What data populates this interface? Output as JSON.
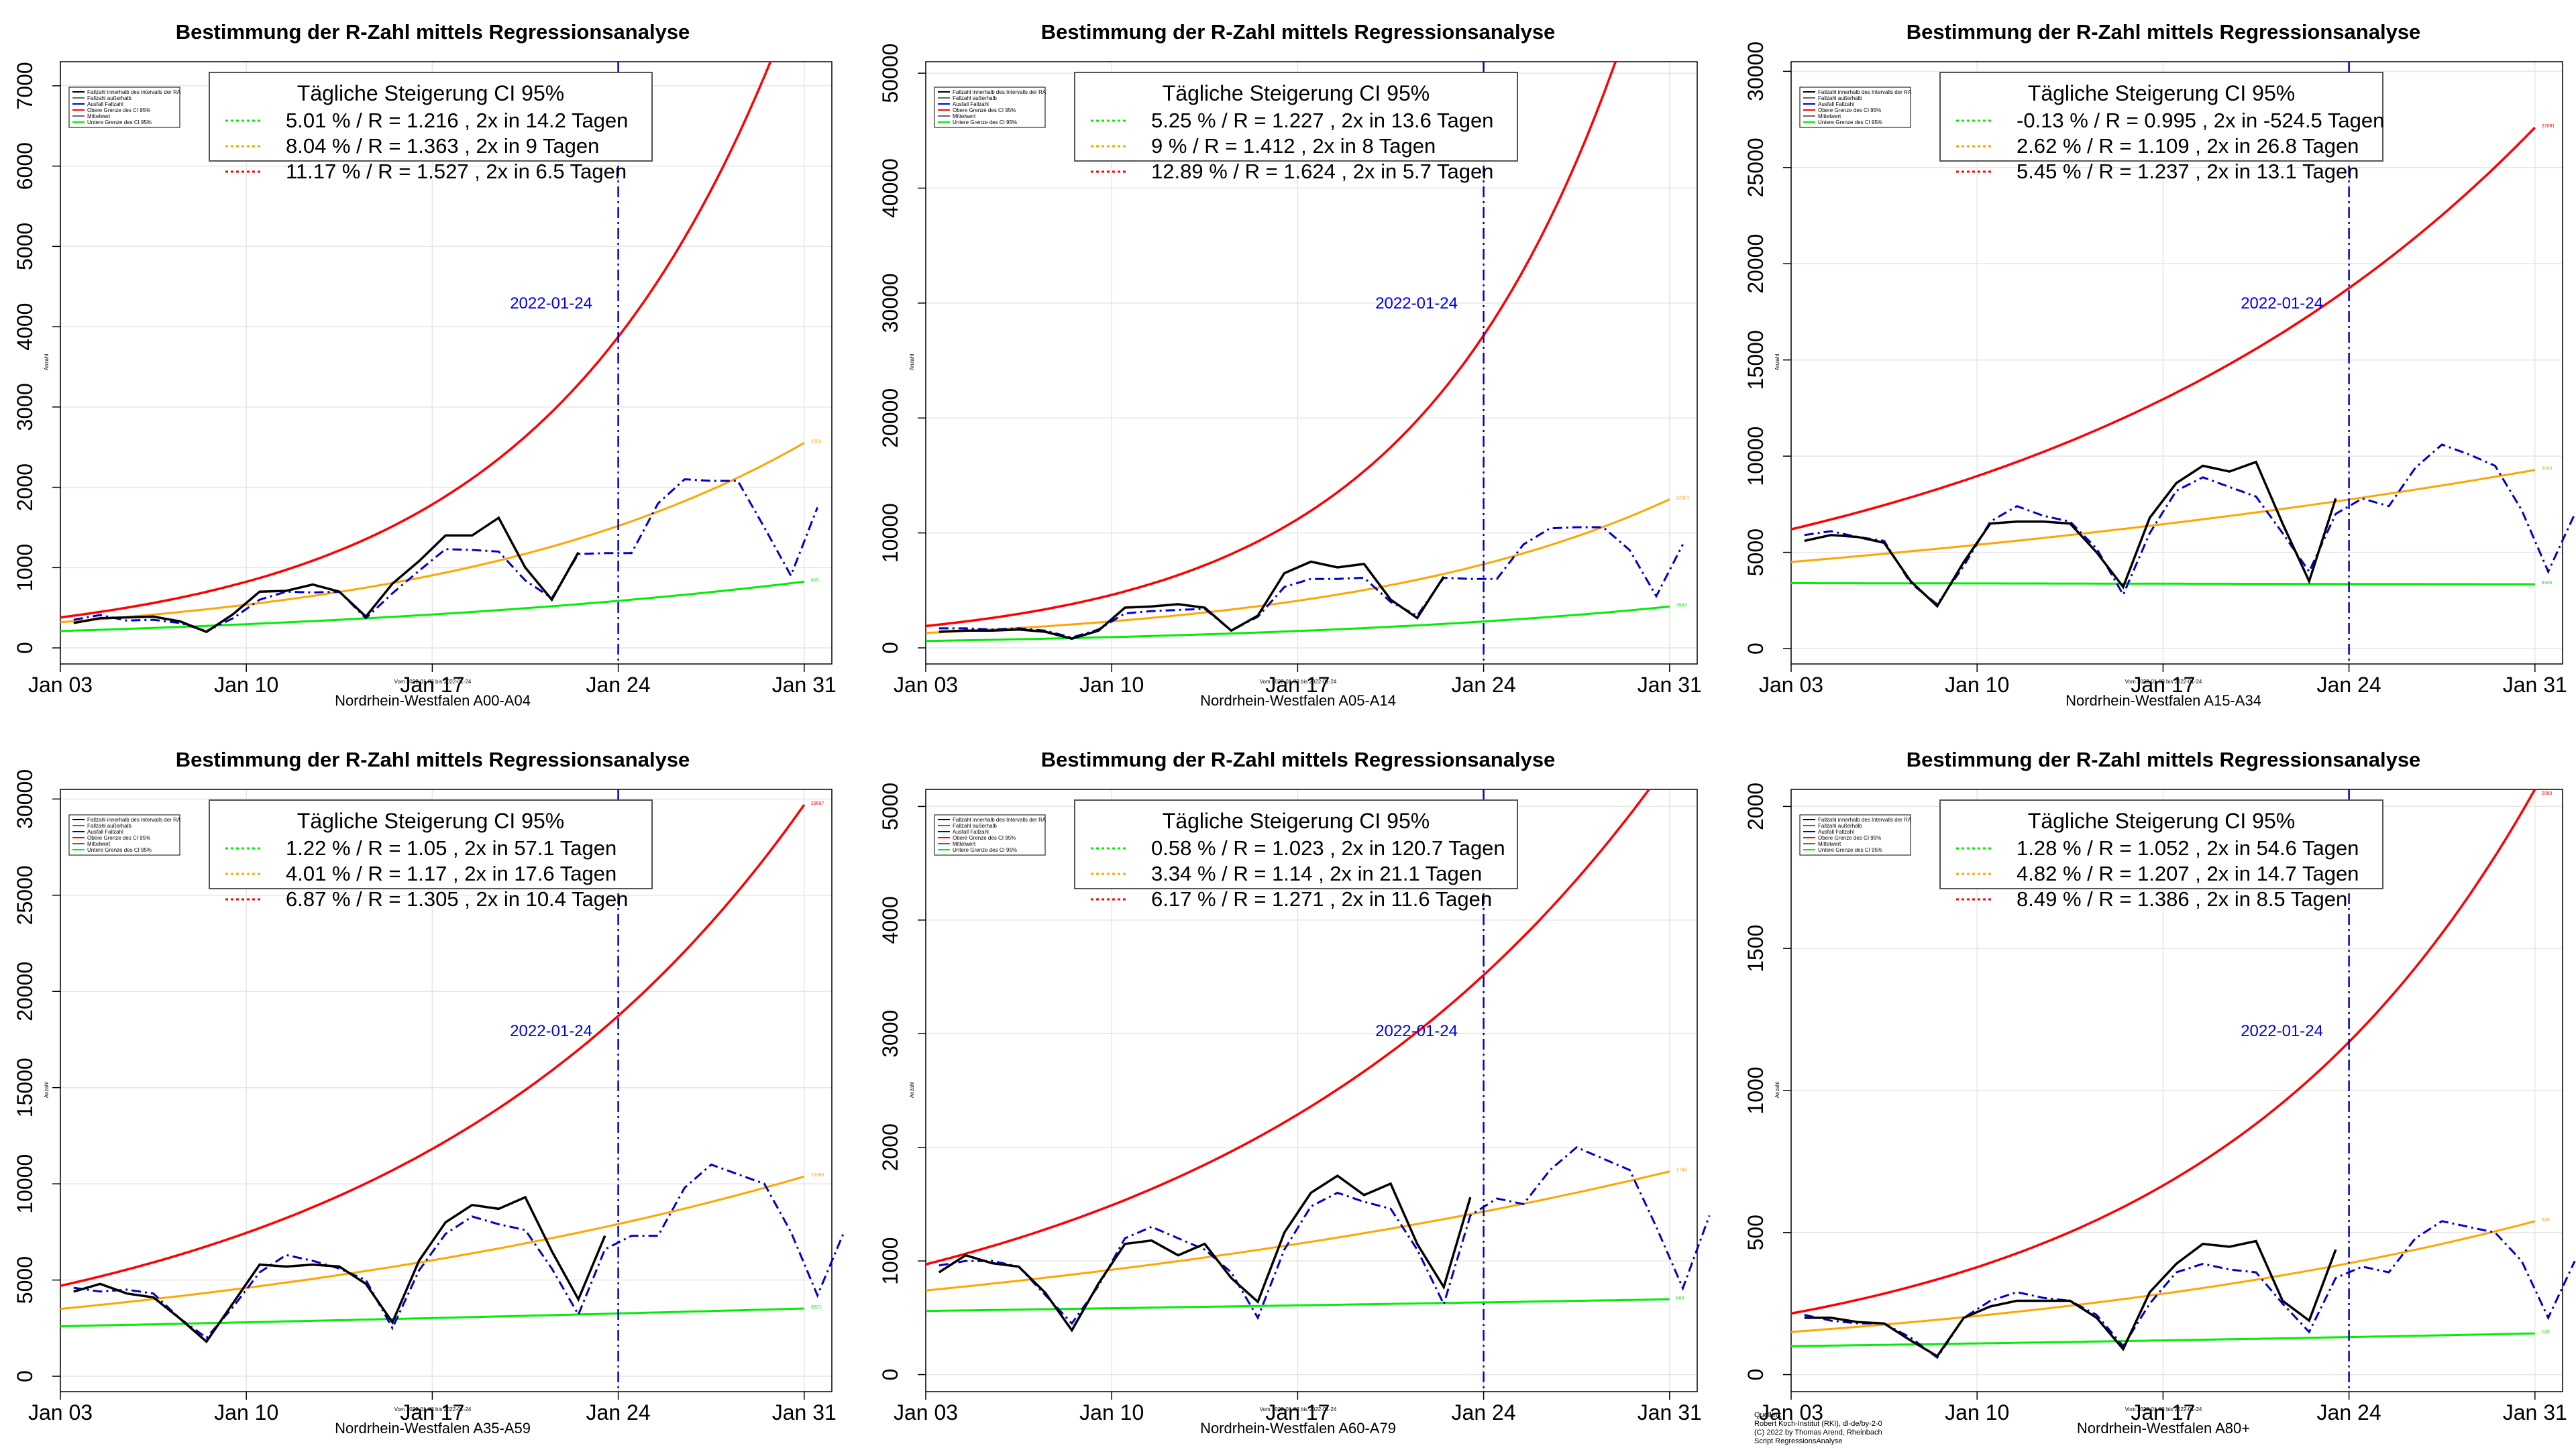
{
  "colors": {
    "actual": "#000000",
    "reported": "#0000cc",
    "upper": "#ff0000",
    "mid": "#ffa500",
    "lower": "#00ee00",
    "grid": "#e6e6e6",
    "vline": "#0000cc"
  },
  "chart_data": [
    {
      "type": "line",
      "title": "Bestimmung der R-Zahl mittels Regressionsanalyse",
      "xlabel": "Nordrhein-Westfalen A00-A04",
      "ylabel": "Anzahl",
      "x_ticks": [
        "Jan 03",
        "Jan 10",
        "Jan 17",
        "Jan 24",
        "Jan 31"
      ],
      "y_ticks": [
        0,
        1000,
        2000,
        3000,
        4000,
        5000,
        6000,
        7000
      ],
      "ylim": [
        -200,
        7300
      ],
      "vline_label": "2022-01-24",
      "small_note": "Vom 2022-01-03 bis 2022-01-24",
      "legend_small": [
        "Fallzahl innerhalb des Intervalls der RA",
        "Fallzahl außerhalb",
        "Ausfall Fallzahl",
        "Obere Grenze des CI 95%",
        "Mittelwert",
        "Untere Grenze des CI 95%"
      ],
      "legend_title": "Tägliche Steigerung CI  95%",
      "legend_lines": [
        "5.01 % / R = 1.216 , 2x in 14.2 Tagen",
        "8.04 % / R = 1.363 , 2x in 9 Tagen",
        "11.17 % / R = 1.527 , 2x in 6.5 Tagen"
      ],
      "end_labels": [
        "",
        "2553",
        "825"
      ],
      "curves": {
        "upper": [
          380,
          8400
        ],
        "mid": [
          320,
          2553
        ],
        "lower": [
          210,
          825
        ]
      },
      "actual": [
        310,
        370,
        380,
        390,
        330,
        200,
        420,
        700,
        710,
        790,
        700,
        390,
        800,
        1080,
        1400,
        1400,
        1620,
        1000,
        600,
        1190
      ],
      "reported": [
        350,
        410,
        340,
        350,
        310,
        210,
        370,
        600,
        700,
        690,
        700,
        370,
        680,
        960,
        1230,
        1220,
        1200,
        840,
        620,
        1170,
        1180,
        1180,
        1800,
        2100,
        2080,
        2080,
        1500,
        900,
        1750
      ],
      "series": [
        {
          "name": "5.01 % / R = 1.216 , 2x in 14.2 Tagen"
        },
        {
          "name": "8.04 % / R = 1.363 , 2x in 9 Tagen"
        },
        {
          "name": "11.17 % / R = 1.527 , 2x in 6.5 Tagen"
        }
      ]
    },
    {
      "type": "line",
      "title": "Bestimmung der R-Zahl mittels Regressionsanalyse",
      "xlabel": "Nordrhein-Westfalen A05-A14",
      "ylabel": "Anzahl",
      "x_ticks": [
        "Jan 03",
        "Jan 10",
        "Jan 17",
        "Jan 24",
        "Jan 31"
      ],
      "y_ticks": [
        0,
        10000,
        20000,
        30000,
        40000,
        50000
      ],
      "ylim": [
        -1400,
        51000
      ],
      "vline_label": "2022-01-24",
      "small_note": "Vom 2022-01-03 bis 2022-01-24",
      "legend_small": [
        "Fallzahl innerhalb des Intervalls der RA",
        "Fallzahl außerhalb",
        "Ausfall Fallzahl",
        "Obere Grenze des CI 95%",
        "Mittelwert",
        "Untere Grenze des CI 95%"
      ],
      "legend_title": "Tägliche Steigerung CI  95%",
      "legend_lines": [
        "5.25 % / R = 1.227 , 2x in 13.6 Tagen",
        "9 % / R = 1.412 , 2x in 8 Tagen",
        "12.89 % / R = 1.624 , 2x in 5.7 Tagen"
      ],
      "end_labels": [
        "",
        "12921",
        "3593"
      ],
      "curves": {
        "upper": [
          1900,
          66000
        ],
        "mid": [
          1300,
          12921
        ],
        "lower": [
          600,
          3593
        ]
      },
      "actual": [
        1400,
        1500,
        1500,
        1600,
        1400,
        800,
        1500,
        3500,
        3600,
        3800,
        3500,
        1500,
        2800,
        6500,
        7500,
        7000,
        7300,
        4200,
        2600,
        6200
      ],
      "reported": [
        1700,
        1700,
        1600,
        1700,
        1500,
        900,
        1600,
        3000,
        3200,
        3300,
        3400,
        1500,
        2700,
        5300,
        6000,
        6000,
        6100,
        4000,
        2800,
        6100,
        6000,
        6000,
        9000,
        10400,
        10500,
        10500,
        8500,
        4500,
        9000
      ]
    },
    {
      "type": "line",
      "title": "Bestimmung der R-Zahl mittels Regressionsanalyse",
      "xlabel": "Nordrhein-Westfalen A15-A34",
      "ylabel": "Anzahl",
      "x_ticks": [
        "Jan 03",
        "Jan 10",
        "Jan 17",
        "Jan 24",
        "Jan 31"
      ],
      "y_ticks": [
        0,
        5000,
        10000,
        15000,
        20000,
        25000,
        30000
      ],
      "ylim": [
        -800,
        30500
      ],
      "vline_label": "2022-01-24",
      "small_note": "Vom 2022-01-03 bis 2022-01-24",
      "legend_small": [
        "Fallzahl innerhalb des Intervalls der RA",
        "Fallzahl außerhalb",
        "Ausfall Fallzahl",
        "Obere Grenze des CI 95%",
        "Mittelwert",
        "Untere Grenze des CI 95%"
      ],
      "legend_title": "Tägliche Steigerung CI  95%",
      "legend_lines": [
        "-0.13 % / R = 0.995 , 2x in -524.5 Tagen",
        "2.62 % / R = 1.109 , 2x in 26.8 Tagen",
        "5.45 % / R = 1.237 , 2x in 13.1 Tagen"
      ],
      "end_labels": [
        "27081",
        "9283",
        "3345"
      ],
      "curves": {
        "upper": [
          6200,
          27081
        ],
        "mid": [
          4500,
          9283
        ],
        "lower": [
          3400,
          3345
        ]
      },
      "actual": [
        5600,
        5900,
        5800,
        5500,
        3500,
        2200,
        4500,
        6500,
        6600,
        6600,
        6500,
        5000,
        3200,
        6800,
        8600,
        9500,
        9200,
        9700,
        6500,
        3500,
        7800
      ],
      "reported": [
        5900,
        6100,
        5800,
        5600,
        3400,
        2300,
        4300,
        6600,
        7400,
        6900,
        6600,
        5200,
        2800,
        6000,
        8200,
        8900,
        8400,
        7900,
        6000,
        4000,
        7000,
        7800,
        7400,
        9400,
        10600,
        10100,
        9500,
        7200,
        4000,
        7000
      ]
    },
    {
      "type": "line",
      "title": "Bestimmung der R-Zahl mittels Regressionsanalyse",
      "xlabel": "Nordrhein-Westfalen A35-A59",
      "ylabel": "Anzahl",
      "x_ticks": [
        "Jan 03",
        "Jan 10",
        "Jan 17",
        "Jan 24",
        "Jan 31"
      ],
      "y_ticks": [
        0,
        5000,
        10000,
        15000,
        20000,
        25000,
        30000
      ],
      "ylim": [
        -800,
        30500
      ],
      "vline_label": "2022-01-24",
      "small_note": "Vom 2022-01-03 bis 2022-01-24",
      "legend_small": [
        "Fallzahl innerhalb des Intervalls der RA",
        "Fallzahl außerhalb",
        "Ausfall Fallzahl",
        "Obere Grenze des CI 95%",
        "Mittelwert",
        "Untere Grenze des CI 95%"
      ],
      "legend_title": "Tägliche Steigerung CI  95%",
      "legend_lines": [
        "1.22 % / R = 1.05 , 2x in 57.1 Tagen",
        "4.01 % / R = 1.17 , 2x in 17.6 Tagen",
        "6.87 % / R = 1.305 , 2x in 10.4 Tagen"
      ],
      "end_labels": [
        "29697",
        "10380",
        "3521"
      ],
      "curves": {
        "upper": [
          4700,
          29697
        ],
        "mid": [
          3500,
          10380
        ],
        "lower": [
          2600,
          3521
        ]
      },
      "actual": [
        4400,
        4800,
        4300,
        4100,
        3000,
        1800,
        3800,
        5800,
        5700,
        5800,
        5700,
        4800,
        2800,
        6000,
        8000,
        8900,
        8700,
        9300,
        6500,
        4000,
        7300
      ],
      "reported": [
        4600,
        4400,
        4500,
        4300,
        3000,
        2000,
        3600,
        5400,
        6300,
        6000,
        5600,
        5000,
        2500,
        5500,
        7400,
        8300,
        7900,
        7600,
        5600,
        3200,
        6600,
        7300,
        7300,
        9800,
        11000,
        10500,
        10000,
        7500,
        4200,
        7500
      ]
    },
    {
      "type": "line",
      "title": "Bestimmung der R-Zahl mittels Regressionsanalyse",
      "xlabel": "Nordrhein-Westfalen A60-A79",
      "ylabel": "Anzahl",
      "x_ticks": [
        "Jan 03",
        "Jan 10",
        "Jan 17",
        "Jan 24",
        "Jan 31"
      ],
      "y_ticks": [
        0,
        1000,
        2000,
        3000,
        4000,
        5000
      ],
      "ylim": [
        -150,
        5150
      ],
      "vline_label": "2022-01-24",
      "small_note": "Vom 2022-01-03 bis 2022-01-24",
      "legend_small": [
        "Fallzahl innerhalb des Intervalls der RA",
        "Fallzahl außerhalb",
        "Ausfall Fallzahl",
        "Obere Grenze des CI 95%",
        "Mittelwert",
        "Untere Grenze des CI 95%"
      ],
      "legend_title": "Tägliche Steigerung CI  95%",
      "legend_lines": [
        "0.58 % / R = 1.023 , 2x in 120.7 Tagen",
        "3.34 % / R = 1.14 , 2x in 21.1 Tagen",
        "6.17 % / R = 1.271 , 2x in 11.6 Tagen"
      ],
      "end_labels": [
        "",
        "1788",
        "663"
      ],
      "curves": {
        "upper": [
          970,
          5400
        ],
        "mid": [
          740,
          1788
        ],
        "lower": [
          560,
          663
        ]
      },
      "actual": [
        900,
        1050,
        980,
        950,
        720,
        390,
        800,
        1150,
        1180,
        1050,
        1150,
        850,
        640,
        1250,
        1600,
        1750,
        1580,
        1680,
        1150,
        770,
        1560
      ],
      "reported": [
        960,
        1000,
        1000,
        950,
        700,
        450,
        780,
        1200,
        1300,
        1200,
        1100,
        900,
        500,
        1100,
        1480,
        1600,
        1520,
        1460,
        1100,
        620,
        1400,
        1550,
        1500,
        1800,
        2000,
        1900,
        1800,
        1300,
        760,
        1400
      ]
    },
    {
      "type": "line",
      "title": "Bestimmung der R-Zahl mittels Regressionsanalyse",
      "xlabel": "Nordrhein-Westfalen A80+",
      "ylabel": "Anzahl",
      "x_ticks": [
        "Jan 03",
        "Jan 10",
        "Jan 17",
        "Jan 24",
        "Jan 31"
      ],
      "y_ticks": [
        0,
        500,
        1000,
        1500,
        2000
      ],
      "ylim": [
        -60,
        2060
      ],
      "vline_label": "2022-01-24",
      "small_note": "Vom 2022-01-03 bis 2022-01-24",
      "legend_small": [
        "Fallzahl innerhalb des Intervalls der RA",
        "Fallzahl außerhalb",
        "Ausfall Fallzahl",
        "Obere Grenze des CI 95%",
        "Mittelwert",
        "Untere Grenze des CI 95%"
      ],
      "legend_title": "Tägliche Steigerung CI  95%",
      "legend_lines": [
        "1.28 % / R = 1.052 , 2x in 54.6 Tagen",
        "4.82 % / R = 1.207 , 2x in 14.7 Tagen",
        "8.49 % / R = 1.386 , 2x in 8.5 Tagen"
      ],
      "end_labels": [
        "2060",
        "540",
        "145"
      ],
      "curves": {
        "upper": [
          215,
          2060
        ],
        "mid": [
          150,
          540
        ],
        "lower": [
          100,
          145
        ]
      },
      "actual": [
        200,
        200,
        185,
        180,
        120,
        65,
        200,
        240,
        260,
        260,
        260,
        200,
        90,
        290,
        390,
        460,
        450,
        470,
        260,
        190,
        440
      ],
      "reported": [
        210,
        190,
        180,
        180,
        130,
        60,
        200,
        260,
        290,
        270,
        260,
        210,
        100,
        250,
        360,
        390,
        370,
        360,
        250,
        150,
        340,
        380,
        360,
        480,
        540,
        520,
        500,
        400,
        200,
        400
      ],
      "source_lines": [
        "Quellen:",
        "Robert Koch-Institut (RKI), dl-de/by-2-0",
        "(C) 2022 by Thomas Arend, Rheinbach",
        "Script RegressionsAnalyse"
      ]
    }
  ]
}
